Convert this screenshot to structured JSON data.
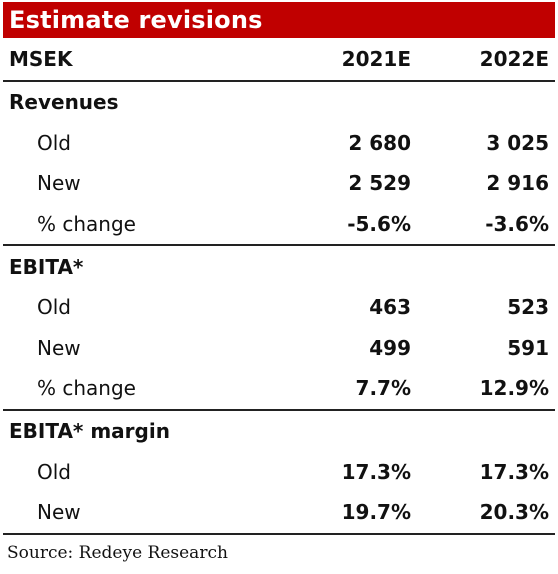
{
  "title": "Estimate revisions",
  "header": {
    "label": "MSEK",
    "col1": "2021E",
    "col2": "2022E"
  },
  "sections": [
    {
      "heading": "Revenues",
      "rows": [
        {
          "label": "Old",
          "v1": "2 680",
          "v2": "3 025"
        },
        {
          "label": "New",
          "v1": "2 529",
          "v2": "2 916"
        },
        {
          "label": "% change",
          "v1": "-5.6%",
          "v2": "-3.6%"
        }
      ]
    },
    {
      "heading": "EBITA*",
      "rows": [
        {
          "label": "Old",
          "v1": "463",
          "v2": "523"
        },
        {
          "label": "New",
          "v1": "499",
          "v2": "591"
        },
        {
          "label": "% change",
          "v1": "7.7%",
          "v2": "12.9%"
        }
      ]
    },
    {
      "heading": "EBITA* margin",
      "rows": [
        {
          "label": "Old",
          "v1": "17.3%",
          "v2": "17.3%"
        },
        {
          "label": "New",
          "v1": "19.7%",
          "v2": "20.3%"
        }
      ]
    }
  ],
  "source": "Source: Redeye Research",
  "colors": {
    "title_bg": "#c00000",
    "title_text": "#ffffff",
    "rule": "#222222"
  }
}
